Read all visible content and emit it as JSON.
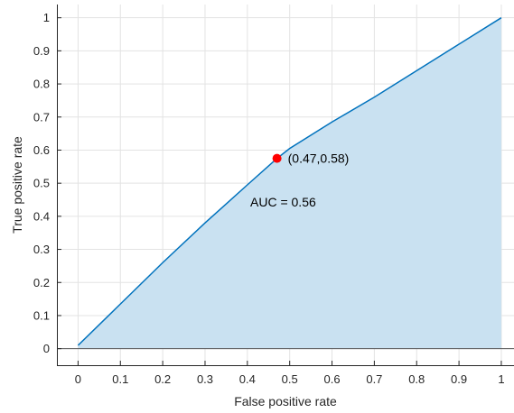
{
  "chart_data": {
    "type": "area",
    "xlabel": "False positive rate",
    "ylabel": "True positive rate",
    "xlim": [
      -0.05,
      1.03
    ],
    "ylim": [
      -0.05,
      1.04
    ],
    "xticks": [
      0,
      0.1,
      0.2,
      0.3,
      0.4,
      0.5,
      0.6,
      0.7,
      0.8,
      0.9,
      1
    ],
    "yticks": [
      0,
      0.1,
      0.2,
      0.3,
      0.4,
      0.5,
      0.6,
      0.7,
      0.8,
      0.9,
      1
    ],
    "grid": true,
    "colors": {
      "line": "#0072bd",
      "fill": "#c9e1f1",
      "marker": "#ff0000",
      "grid": "#e3e3e3",
      "axis": "#262626"
    },
    "series": [
      {
        "x": [
          0,
          0.1,
          0.2,
          0.3,
          0.4,
          0.47,
          0.5,
          0.6,
          0.7,
          0.8,
          0.9,
          1
        ],
        "y": [
          0.01,
          0.135,
          0.26,
          0.38,
          0.495,
          0.575,
          0.605,
          0.685,
          0.76,
          0.84,
          0.92,
          1
        ]
      }
    ],
    "marker_point": {
      "x": 0.47,
      "y": 0.575
    },
    "annotations": {
      "point_label": "(0.47,0.58)",
      "auc_label": "AUC = 0.56"
    }
  }
}
